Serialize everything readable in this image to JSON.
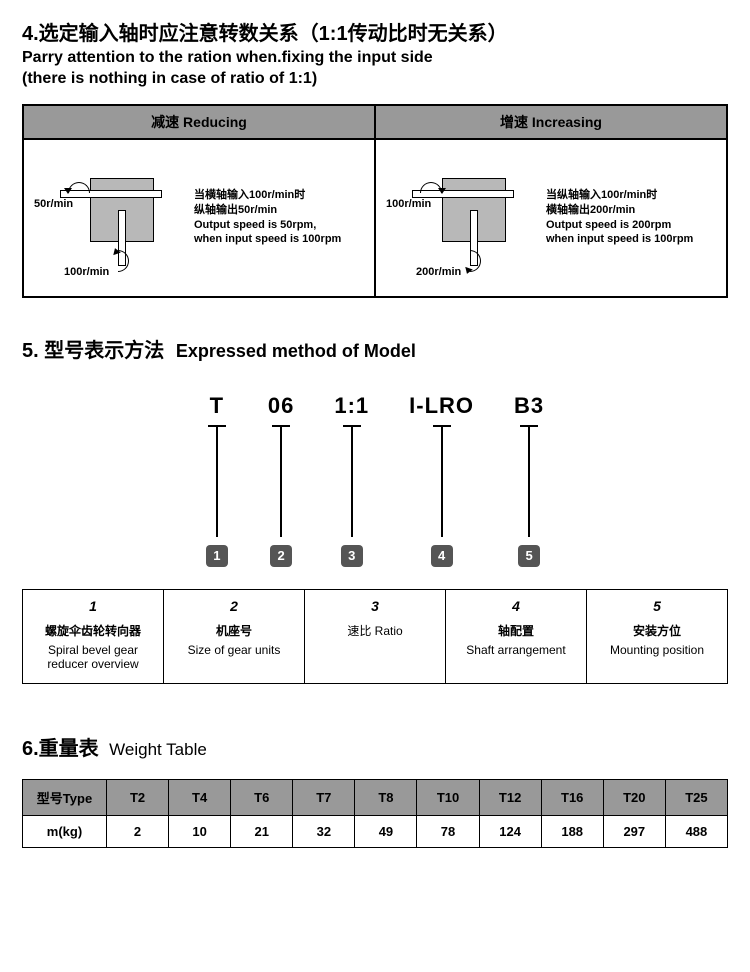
{
  "colors": {
    "header_bg": "#999999",
    "box_fill": "#b8b8b8",
    "badge_bg": "#555555",
    "badge_fg": "#ffffff",
    "border": "#000000",
    "text": "#000000"
  },
  "section4": {
    "title_cn": "4.选定输入轴时应注意转数关系（1:1传动比时无关系）",
    "title_en1": "Parry attention to the ration when.fixing the input side",
    "title_en2": "(there is nothing in case of ratio of 1:1)",
    "reducing": {
      "header": "减速 Reducing",
      "label_top": "50r/min",
      "label_bottom": "100r/min",
      "note_cn1": "当横轴输入100r/min时",
      "note_cn2": "纵轴输出50r/min",
      "note_en1": "Output speed is 50rpm,",
      "note_en2": "when input speed is 100rpm"
    },
    "increasing": {
      "header": "增速 Increasing",
      "label_top": "100r/min",
      "label_bottom": "200r/min",
      "note_cn1": "当纵轴输入100r/min时",
      "note_cn2": "横轴输出200r/min",
      "note_en1": "Output speed is 200rpm",
      "note_en2": "when input speed is 100rpm"
    }
  },
  "section5": {
    "title_cn": "5. 型号表示方法",
    "title_en": "Expressed method of Model",
    "segments": [
      "T",
      "06",
      "1:1",
      "I-LRO",
      "B3"
    ],
    "numbers": [
      "1",
      "2",
      "3",
      "4",
      "5"
    ],
    "legend": [
      {
        "num": "1",
        "cn": "螺旋伞齿轮转向器",
        "en": "Spiral bevel gear reducer overview"
      },
      {
        "num": "2",
        "cn": "机座号",
        "en": "Size of gear units"
      },
      {
        "num": "3",
        "cn": "",
        "en": "速比 Ratio"
      },
      {
        "num": "4",
        "cn": "轴配置",
        "en": "Shaft arrangement"
      },
      {
        "num": "5",
        "cn": "安装方位",
        "en": "Mounting position"
      }
    ]
  },
  "section6": {
    "title_cn": "6.重量表",
    "title_en": "Weight Table",
    "col_label": "型号Type",
    "row_label": "m(kg)",
    "types": [
      "T2",
      "T4",
      "T6",
      "T7",
      "T8",
      "T10",
      "T12",
      "T16",
      "T20",
      "T25"
    ],
    "weights": [
      "2",
      "10",
      "21",
      "32",
      "49",
      "78",
      "124",
      "188",
      "297",
      "488"
    ]
  }
}
